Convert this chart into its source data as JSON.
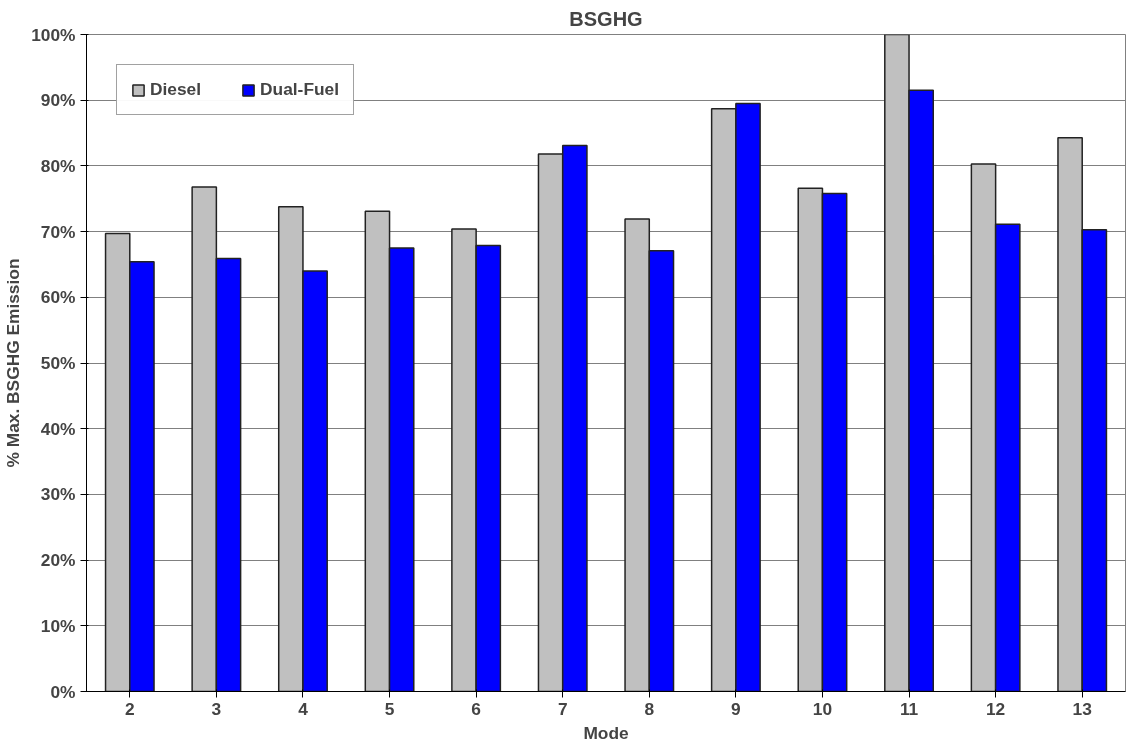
{
  "chart_data": {
    "type": "bar",
    "title": "BSGHG",
    "xlabel": "Mode",
    "ylabel": "% Max. BSGHG Emission",
    "categories": [
      "2",
      "3",
      "4",
      "5",
      "6",
      "7",
      "8",
      "9",
      "10",
      "11",
      "12",
      "13"
    ],
    "series": [
      {
        "name": "Diesel",
        "color": "#c0c0c0",
        "values": [
          69.7,
          76.8,
          73.8,
          73.1,
          70.4,
          81.8,
          71.9,
          88.7,
          76.6,
          100,
          80.3,
          84.3
        ]
      },
      {
        "name": "Dual-Fuel",
        "color": "#0000ff",
        "values": [
          65.4,
          65.9,
          64.0,
          67.5,
          67.9,
          83.1,
          67.1,
          89.5,
          75.8,
          91.5,
          71.1,
          70.3
        ]
      }
    ],
    "ylim": [
      0,
      100
    ],
    "yticks": [
      {
        "value": 0,
        "label": "0%"
      },
      {
        "value": 10,
        "label": "10%"
      },
      {
        "value": 20,
        "label": "20%"
      },
      {
        "value": 30,
        "label": "30%"
      },
      {
        "value": 40,
        "label": "40%"
      },
      {
        "value": 50,
        "label": "50%"
      },
      {
        "value": 60,
        "label": "60%"
      },
      {
        "value": 70,
        "label": "70%"
      },
      {
        "value": 80,
        "label": "80%"
      },
      {
        "value": 90,
        "label": "90%"
      },
      {
        "value": 100,
        "label": "100%"
      }
    ],
    "grid": "y",
    "legend": "top left"
  }
}
